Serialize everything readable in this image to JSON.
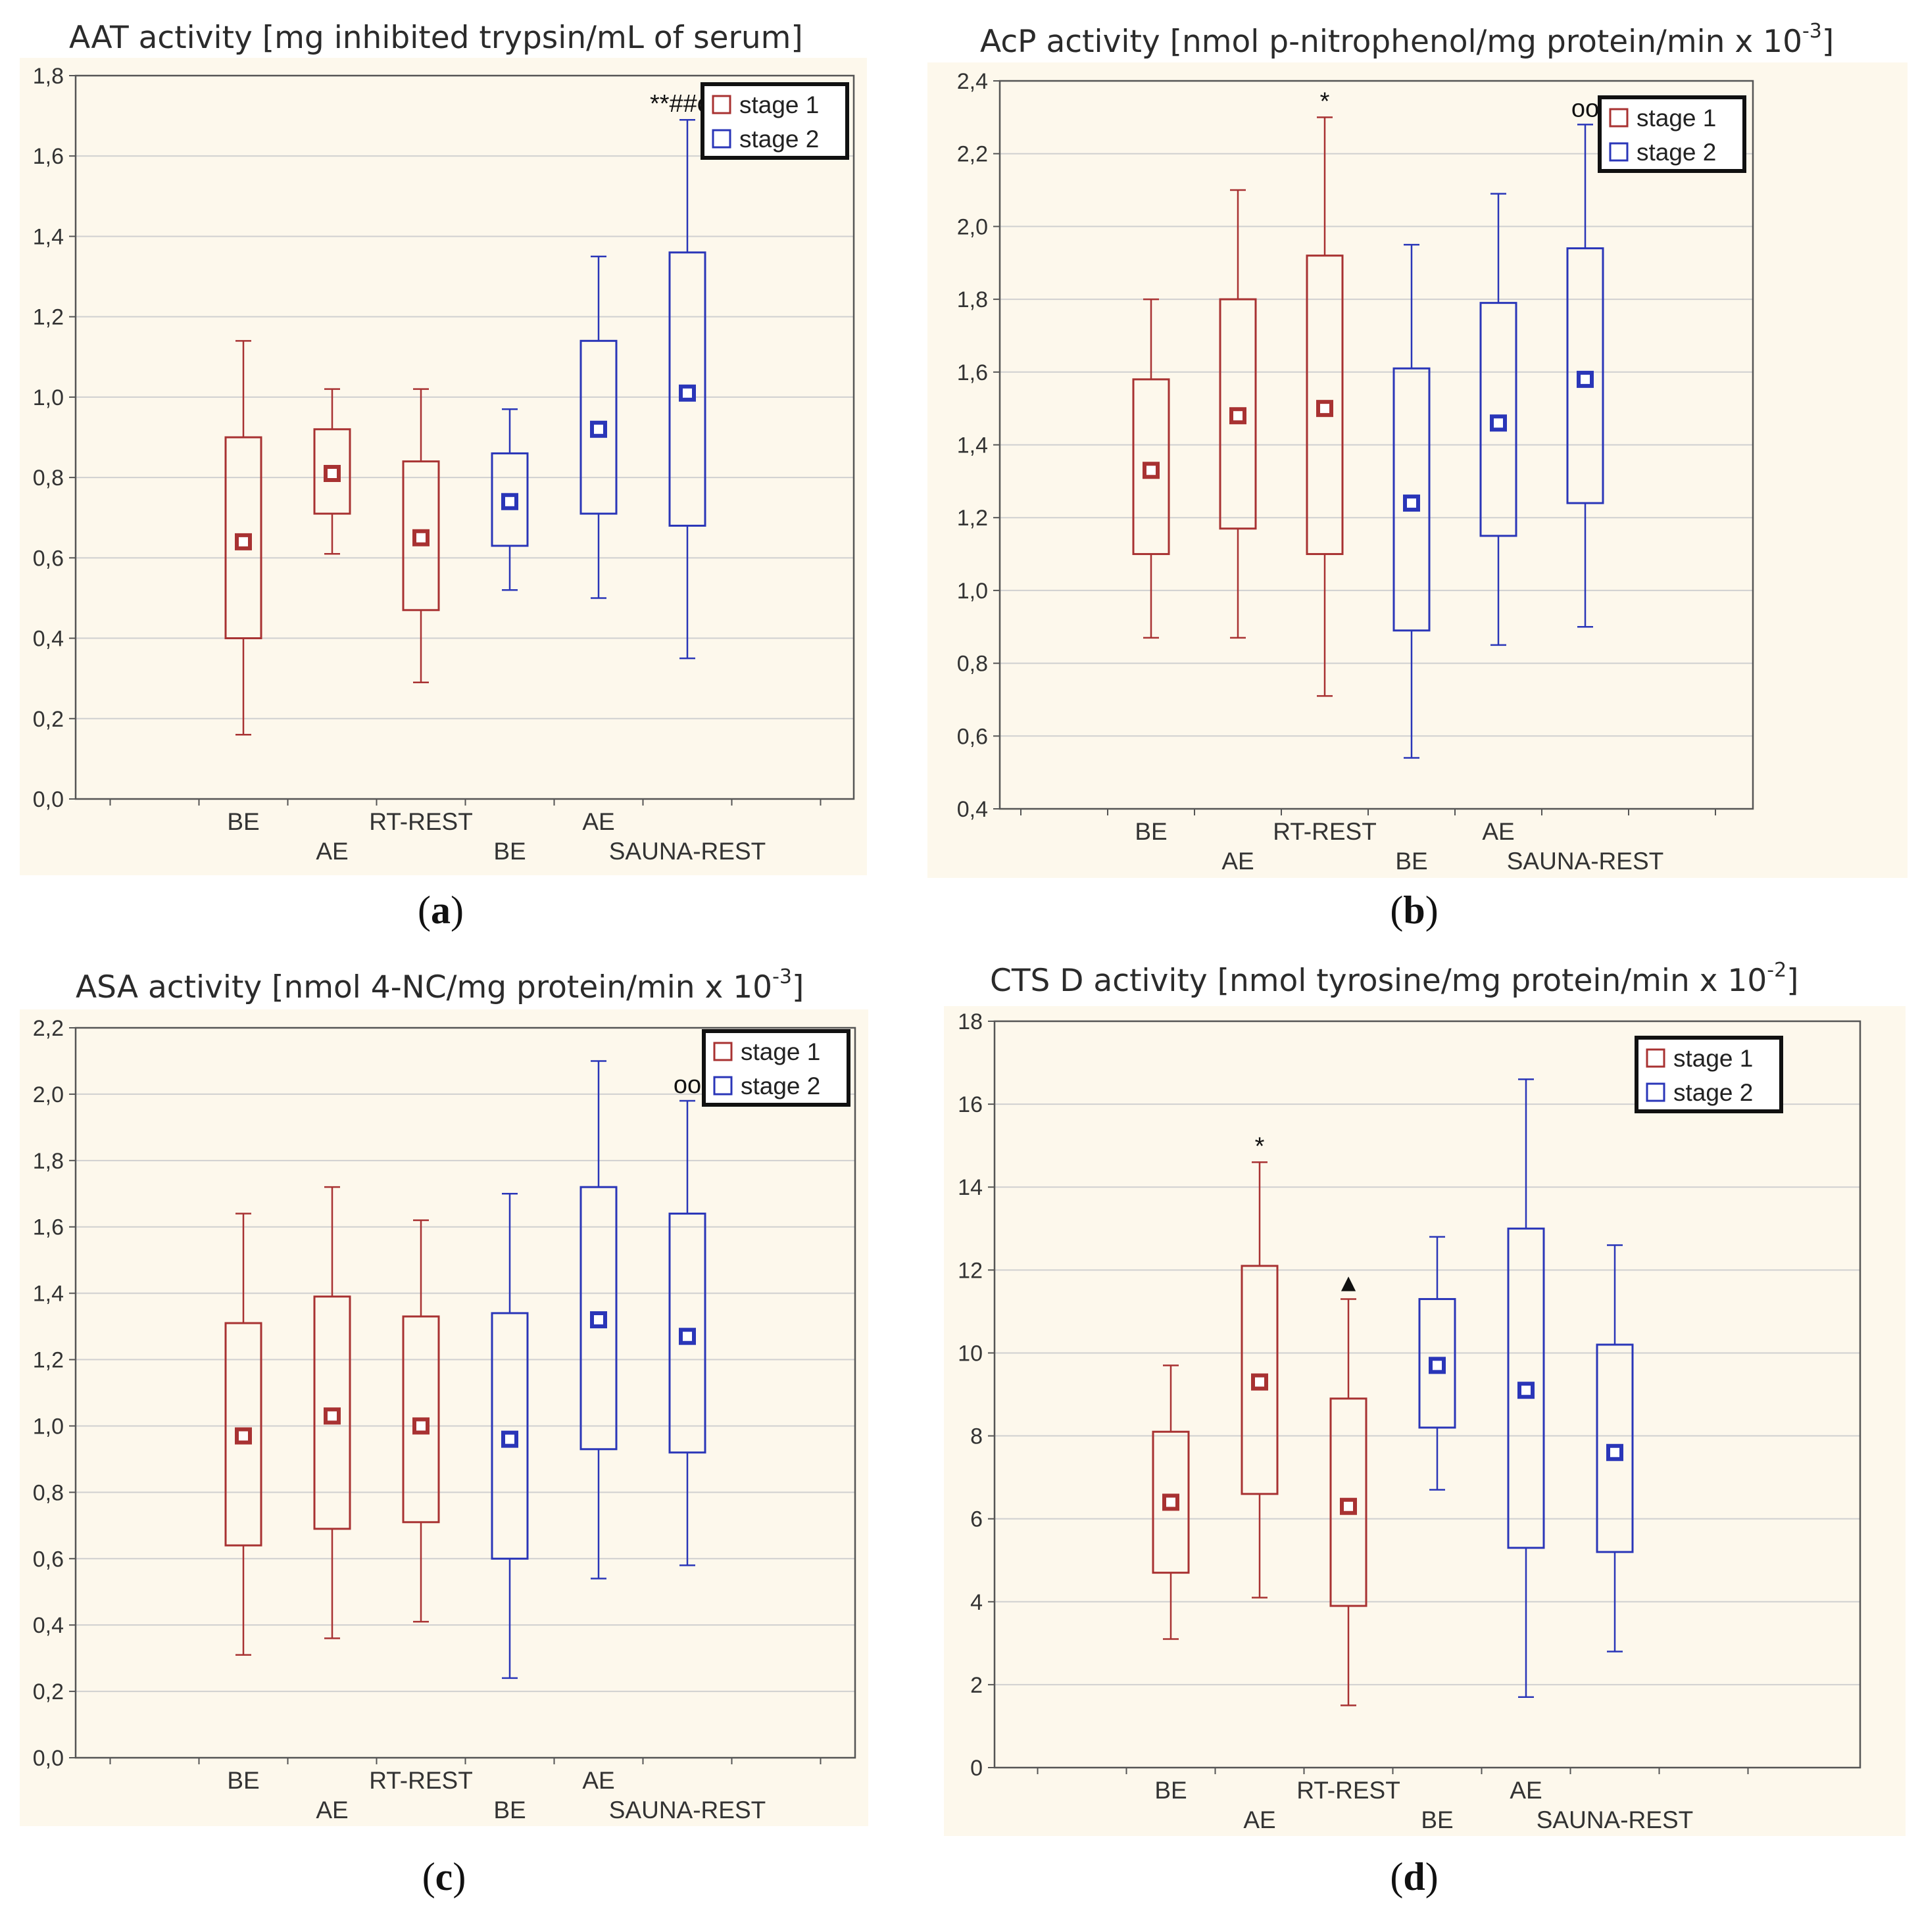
{
  "colors": {
    "stage1": "#a83232",
    "stage2": "#2a36b8",
    "grid": "#d0d0d0",
    "axis": "#555555",
    "plot_bg": "#fdf8ec"
  },
  "panels": [
    {
      "caption_open": "(",
      "caption_letter": "a",
      "caption_close": ")",
      "title": "AAT activity [mg inhibited trypsin/mL of serum]",
      "title_sup": ""
    },
    {
      "caption_open": "(",
      "caption_letter": "b",
      "caption_close": ")",
      "title": "AcP activity [nmol p-nitrophenol/mg protein/min x 10",
      "title_sup": "-3",
      "title_end": "]"
    },
    {
      "caption_open": "(",
      "caption_letter": "c",
      "caption_close": ")",
      "title": "ASA activity [nmol 4-NC/mg protein/min x 10",
      "title_sup": "-3",
      "title_end": "]"
    },
    {
      "caption_open": "(",
      "caption_letter": "d",
      "caption_close": ")",
      "title": "CTS D activity [nmol tyrosine/mg protein/min x 10",
      "title_sup": "-2",
      "title_end": "]"
    }
  ],
  "chart_data": [
    {
      "type": "box",
      "title": "AAT activity [mg inhibited trypsin/mL of serum]",
      "categories": [
        "BE",
        "AE",
        "RT-REST",
        "BE",
        "AE",
        "SAUNA-REST"
      ],
      "legend": [
        "stage 1",
        "stage 2"
      ],
      "ylim": [
        0.0,
        1.8
      ],
      "yticks": [
        "0,0",
        "0,2",
        "0,4",
        "0,6",
        "0,8",
        "1,0",
        "1,2",
        "1,4",
        "1,6",
        "1,8"
      ],
      "series": [
        {
          "name": "stage 1",
          "boxes": [
            {
              "cat": "BE",
              "min": 0.16,
              "q1": 0.4,
              "mean": 0.64,
              "q3": 0.9,
              "max": 1.14
            },
            {
              "cat": "AE",
              "min": 0.61,
              "q1": 0.71,
              "mean": 0.81,
              "q3": 0.92,
              "max": 1.02
            },
            {
              "cat": "RT-REST",
              "min": 0.29,
              "q1": 0.47,
              "mean": 0.65,
              "q3": 0.84,
              "max": 1.02
            }
          ]
        },
        {
          "name": "stage 2",
          "boxes": [
            {
              "cat": "BE",
              "min": 0.52,
              "q1": 0.63,
              "mean": 0.74,
              "q3": 0.86,
              "max": 0.97
            },
            {
              "cat": "AE",
              "min": 0.5,
              "q1": 0.71,
              "mean": 0.92,
              "q3": 1.14,
              "max": 1.35
            },
            {
              "cat": "SAUNA-REST",
              "min": 0.35,
              "q1": 0.68,
              "mean": 1.01,
              "q3": 1.36,
              "max": 1.69
            }
          ]
        }
      ],
      "annotations": [
        {
          "index": 5,
          "text": "**##oo"
        }
      ]
    },
    {
      "type": "box",
      "title": "AcP activity [nmol p-nitrophenol/mg protein/min x 10-3]",
      "categories": [
        "BE",
        "AE",
        "RT-REST",
        "BE",
        "AE",
        "SAUNA-REST"
      ],
      "legend": [
        "stage 1",
        "stage 2"
      ],
      "ylim": [
        0.4,
        2.4
      ],
      "yticks": [
        "0,4",
        "0,6",
        "0,8",
        "1,0",
        "1,2",
        "1,4",
        "1,6",
        "1,8",
        "2,0",
        "2,2",
        "2,4"
      ],
      "series": [
        {
          "name": "stage 1",
          "boxes": [
            {
              "cat": "BE",
              "min": 0.87,
              "q1": 1.1,
              "mean": 1.33,
              "q3": 1.58,
              "max": 1.8
            },
            {
              "cat": "AE",
              "min": 0.87,
              "q1": 1.17,
              "mean": 1.48,
              "q3": 1.8,
              "max": 2.1
            },
            {
              "cat": "RT-REST",
              "min": 0.71,
              "q1": 1.1,
              "mean": 1.5,
              "q3": 1.92,
              "max": 2.3
            }
          ]
        },
        {
          "name": "stage 2",
          "boxes": [
            {
              "cat": "BE",
              "min": 0.54,
              "q1": 0.89,
              "mean": 1.24,
              "q3": 1.61,
              "max": 1.95
            },
            {
              "cat": "AE",
              "min": 0.85,
              "q1": 1.15,
              "mean": 1.46,
              "q3": 1.79,
              "max": 2.09
            },
            {
              "cat": "SAUNA-REST",
              "min": 0.9,
              "q1": 1.24,
              "mean": 1.58,
              "q3": 1.94,
              "max": 2.28
            }
          ]
        }
      ],
      "annotations": [
        {
          "index": 2,
          "text": "*"
        },
        {
          "index": 5,
          "text": "oo"
        }
      ]
    },
    {
      "type": "box",
      "title": "ASA activity [nmol 4-NC/mg protein/min x 10-3]",
      "categories": [
        "BE",
        "AE",
        "RT-REST",
        "BE",
        "AE",
        "SAUNA-REST"
      ],
      "legend": [
        "stage 1",
        "stage 2"
      ],
      "ylim": [
        0.0,
        2.2
      ],
      "yticks": [
        "0,0",
        "0,2",
        "0,4",
        "0,6",
        "0,8",
        "1,0",
        "1,2",
        "1,4",
        "1,6",
        "1,8",
        "2,0",
        "2,2"
      ],
      "series": [
        {
          "name": "stage 1",
          "boxes": [
            {
              "cat": "BE",
              "min": 0.31,
              "q1": 0.64,
              "mean": 0.97,
              "q3": 1.31,
              "max": 1.64
            },
            {
              "cat": "AE",
              "min": 0.36,
              "q1": 0.69,
              "mean": 1.03,
              "q3": 1.39,
              "max": 1.72
            },
            {
              "cat": "RT-REST",
              "min": 0.41,
              "q1": 0.71,
              "mean": 1.0,
              "q3": 1.33,
              "max": 1.62
            }
          ]
        },
        {
          "name": "stage 2",
          "boxes": [
            {
              "cat": "BE",
              "min": 0.24,
              "q1": 0.6,
              "mean": 0.96,
              "q3": 1.34,
              "max": 1.7
            },
            {
              "cat": "AE",
              "min": 0.54,
              "q1": 0.93,
              "mean": 1.32,
              "q3": 1.72,
              "max": 2.1
            },
            {
              "cat": "SAUNA-REST",
              "min": 0.58,
              "q1": 0.92,
              "mean": 1.27,
              "q3": 1.64,
              "max": 1.98
            }
          ]
        }
      ],
      "annotations": [
        {
          "index": 5,
          "text": "oo"
        }
      ]
    },
    {
      "type": "box",
      "title": "CTS D activity [nmol tyrosine/mg protein/min x 10-2]",
      "categories": [
        "BE",
        "AE",
        "RT-REST",
        "BE",
        "AE",
        "SAUNA-REST"
      ],
      "legend": [
        "stage 1",
        "stage 2"
      ],
      "ylim": [
        0,
        18
      ],
      "yticks": [
        "0",
        "2",
        "4",
        "6",
        "8",
        "10",
        "12",
        "14",
        "16",
        "18"
      ],
      "series": [
        {
          "name": "stage 1",
          "boxes": [
            {
              "cat": "BE",
              "min": 3.1,
              "q1": 4.7,
              "mean": 6.4,
              "q3": 8.1,
              "max": 9.7
            },
            {
              "cat": "AE",
              "min": 4.1,
              "q1": 6.6,
              "mean": 9.3,
              "q3": 12.1,
              "max": 14.6
            },
            {
              "cat": "RT-REST",
              "min": 1.5,
              "q1": 3.9,
              "mean": 6.3,
              "q3": 8.9,
              "max": 11.3
            }
          ]
        },
        {
          "name": "stage 2",
          "boxes": [
            {
              "cat": "BE",
              "min": 6.7,
              "q1": 8.2,
              "mean": 9.7,
              "q3": 11.3,
              "max": 12.8
            },
            {
              "cat": "AE",
              "min": 1.7,
              "q1": 5.3,
              "mean": 9.1,
              "q3": 13.0,
              "max": 16.6
            },
            {
              "cat": "SAUNA-REST",
              "min": 2.8,
              "q1": 5.2,
              "mean": 7.6,
              "q3": 10.2,
              "max": 12.6
            }
          ]
        }
      ],
      "annotations": [
        {
          "index": 1,
          "text": "*"
        },
        {
          "index": 2,
          "text": "▲"
        }
      ]
    }
  ]
}
